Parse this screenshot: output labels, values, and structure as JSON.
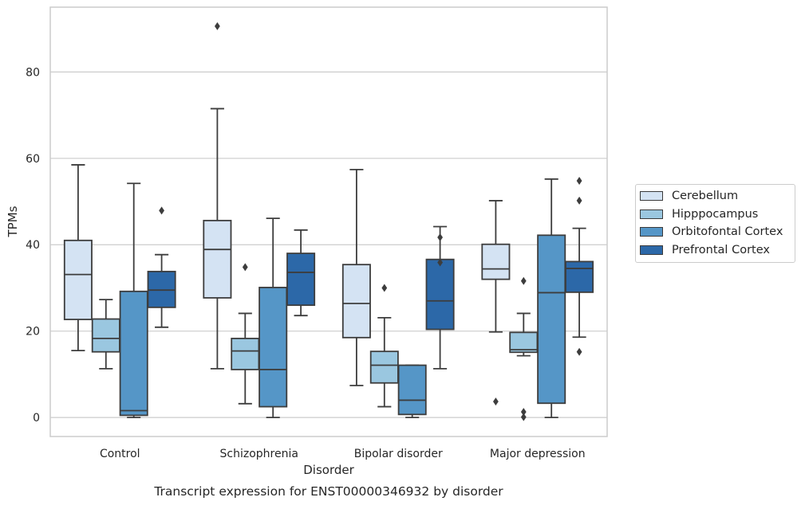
{
  "chart_data": {
    "type": "box",
    "title": "",
    "caption": "Transcript expression for ENST00000346932 by disorder",
    "xlabel": "Disorder",
    "ylabel": "TPMs",
    "ylim": [
      -4.4,
      95
    ],
    "yticks": [
      0,
      20,
      40,
      60,
      80
    ],
    "grid": "y",
    "legend_position": "right",
    "categories": [
      "Control",
      "Schizophrenia",
      "Bipolar disorder",
      "Major depression"
    ],
    "series": [
      {
        "name": "Cerebellum",
        "color": "#d4e3f3",
        "boxes": [
          {
            "whisker_low": 15.5,
            "q1": 22.7,
            "median": 33.1,
            "q3": 41.0,
            "whisker_high": 58.5,
            "outliers": []
          },
          {
            "whisker_low": 11.3,
            "q1": 27.7,
            "median": 38.9,
            "q3": 45.6,
            "whisker_high": 71.5,
            "outliers": [
              90.6
            ]
          },
          {
            "whisker_low": 7.4,
            "q1": 18.5,
            "median": 26.4,
            "q3": 35.4,
            "whisker_high": 57.4,
            "outliers": []
          },
          {
            "whisker_low": 19.8,
            "q1": 32.0,
            "median": 34.4,
            "q3": 40.1,
            "whisker_high": 50.2,
            "outliers": [
              3.7
            ]
          }
        ]
      },
      {
        "name": "Hipppocampus",
        "color": "#9ac7e0",
        "boxes": [
          {
            "whisker_low": 11.3,
            "q1": 15.2,
            "median": 18.3,
            "q3": 22.8,
            "whisker_high": 27.3,
            "outliers": []
          },
          {
            "whisker_low": 3.2,
            "q1": 11.1,
            "median": 15.4,
            "q3": 18.3,
            "whisker_high": 24.1,
            "outliers": [
              34.8
            ]
          },
          {
            "whisker_low": 2.5,
            "q1": 8.0,
            "median": 12.1,
            "q3": 15.3,
            "whisker_high": 23.1,
            "outliers": [
              30.0
            ]
          },
          {
            "whisker_low": 14.3,
            "q1": 15.1,
            "median": 15.7,
            "q3": 19.7,
            "whisker_high": 24.1,
            "outliers": [
              31.6,
              1.3,
              0.1
            ]
          }
        ]
      },
      {
        "name": "Orbitofontal Cortex",
        "color": "#5596c7",
        "boxes": [
          {
            "whisker_low": 0.0,
            "q1": 0.5,
            "median": 1.6,
            "q3": 29.2,
            "whisker_high": 54.2,
            "outliers": []
          },
          {
            "whisker_low": 0.0,
            "q1": 2.5,
            "median": 11.1,
            "q3": 30.1,
            "whisker_high": 46.1,
            "outliers": []
          },
          {
            "whisker_low": 0.0,
            "q1": 0.7,
            "median": 4.0,
            "q3": 12.1,
            "whisker_high": 12.1,
            "outliers": []
          },
          {
            "whisker_low": 0.0,
            "q1": 3.3,
            "median": 28.9,
            "q3": 42.2,
            "whisker_high": 55.2,
            "outliers": []
          }
        ]
      },
      {
        "name": "Prefrontal Cortex",
        "color": "#2c68a8",
        "boxes": [
          {
            "whisker_low": 20.9,
            "q1": 25.5,
            "median": 29.5,
            "q3": 33.8,
            "whisker_high": 37.7,
            "outliers": [
              47.9
            ]
          },
          {
            "whisker_low": 23.6,
            "q1": 26.0,
            "median": 33.6,
            "q3": 38.0,
            "whisker_high": 43.4,
            "outliers": []
          },
          {
            "whisker_low": 11.3,
            "q1": 20.4,
            "median": 27.0,
            "q3": 36.6,
            "whisker_high": 44.2,
            "outliers": [
              41.7,
              35.9
            ]
          },
          {
            "whisker_low": 18.6,
            "q1": 29.0,
            "median": 34.5,
            "q3": 36.1,
            "whisker_high": 43.8,
            "outliers": [
              54.8,
              50.2,
              15.2
            ]
          }
        ]
      }
    ]
  }
}
